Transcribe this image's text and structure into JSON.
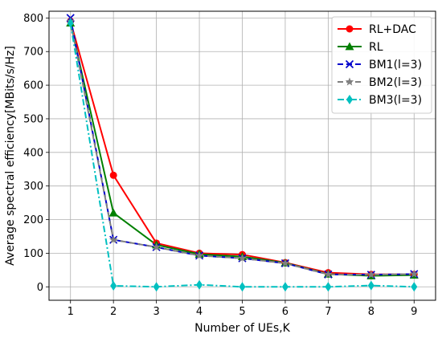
{
  "chart_data": {
    "type": "line",
    "title": "",
    "xlabel": "Number of UEs,K",
    "ylabel": "Average spectral efficiency[MBits/s/Hz]",
    "x": [
      1,
      2,
      3,
      4,
      5,
      6,
      7,
      8,
      9
    ],
    "xlim": [
      0.5,
      9.5
    ],
    "ylim": [
      -40,
      820
    ],
    "xticks": [
      1,
      2,
      3,
      4,
      5,
      6,
      7,
      8,
      9
    ],
    "yticks": [
      0,
      100,
      200,
      300,
      400,
      500,
      600,
      700,
      800
    ],
    "grid": true,
    "legend_position": "top-right",
    "series": [
      {
        "name": "RL+DAC",
        "color": "#ff0000",
        "dash": "solid",
        "marker": "circle",
        "values": [
          790,
          332,
          130,
          100,
          96,
          72,
          42,
          37,
          37
        ]
      },
      {
        "name": "RL",
        "color": "#008000",
        "dash": "solid",
        "marker": "triangle",
        "values": [
          785,
          220,
          125,
          97,
          90,
          71,
          38,
          33,
          35
        ]
      },
      {
        "name": "BM1(l=3)",
        "color": "#0000cc",
        "dash": "dashed",
        "marker": "x",
        "values": [
          800,
          140,
          118,
          93,
          85,
          70,
          37,
          36,
          38
        ]
      },
      {
        "name": "BM2(l=3)",
        "color": "#808080",
        "dash": "dashed",
        "marker": "star",
        "values": [
          790,
          140,
          118,
          93,
          85,
          70,
          37,
          36,
          38
        ]
      },
      {
        "name": "BM3(l=3)",
        "color": "#00c0c0",
        "dash": "dashdot",
        "marker": "diamond",
        "values": [
          785,
          3,
          0,
          6,
          0,
          0,
          0,
          4,
          0
        ]
      }
    ]
  }
}
